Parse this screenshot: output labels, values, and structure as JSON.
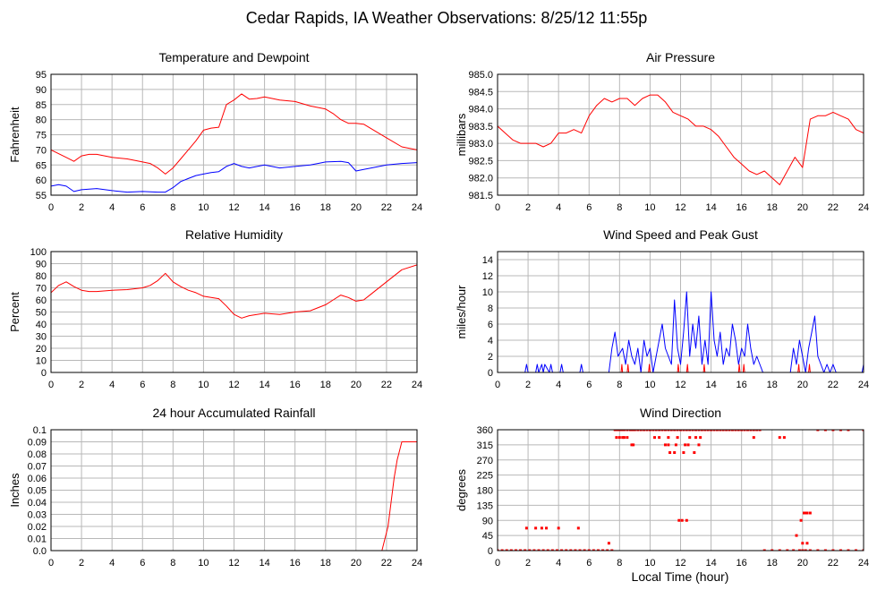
{
  "title": "Cedar Rapids, IA Weather Observations: 8/25/12 11:55p",
  "xlabel": "Local Time (hour)",
  "colors": {
    "primary": "#ff0000",
    "secondary": "#0000ff",
    "grid": "#b8b8b8",
    "frame": "#000000"
  },
  "chart_data": [
    {
      "id": "temp",
      "type": "line",
      "title": "Temperature and Dewpoint",
      "ylabel": "Fahrenheit",
      "xlim": [
        0,
        24
      ],
      "ylim": [
        55,
        95
      ],
      "xticks": [
        "0",
        "2",
        "4",
        "6",
        "8",
        "10",
        "12",
        "14",
        "16",
        "18",
        "20",
        "22",
        "24"
      ],
      "yticks": [
        "55",
        "60",
        "65",
        "70",
        "75",
        "80",
        "85",
        "90",
        "95"
      ],
      "series": [
        {
          "color": "#ff0000",
          "x": [
            0,
            1,
            1.5,
            2,
            2.5,
            3,
            4,
            5,
            6,
            6.5,
            7,
            7.5,
            8,
            8.5,
            9,
            9.5,
            10,
            10.5,
            11,
            11.5,
            12,
            12.5,
            13,
            13.5,
            14,
            14.5,
            15,
            16,
            17,
            18,
            18.5,
            19,
            19.5,
            20,
            20.5,
            21,
            22,
            23,
            24
          ],
          "y": [
            70,
            67.5,
            66.2,
            68,
            68.5,
            68.5,
            67.5,
            67,
            66,
            65.5,
            64,
            62,
            64,
            67,
            70,
            73,
            76.5,
            77.2,
            77.5,
            85,
            86.5,
            88.5,
            86.8,
            87,
            87.5,
            87,
            86.5,
            86,
            84.5,
            83.5,
            82,
            80,
            78.8,
            78.8,
            78.5,
            77,
            74,
            71,
            70
          ]
        },
        {
          "color": "#0000ff",
          "x": [
            0,
            0.5,
            1,
            1.5,
            2,
            3,
            4,
            5,
            6,
            7,
            7.5,
            8,
            8.5,
            9,
            9.5,
            10,
            10.5,
            11,
            11.5,
            12,
            12.5,
            13,
            14,
            15,
            16,
            17,
            17.5,
            18,
            19,
            19.5,
            20,
            20.5,
            21,
            22,
            23,
            24
          ],
          "y": [
            58,
            58.5,
            58,
            56.2,
            56.8,
            57.2,
            56.5,
            56,
            56.2,
            56,
            56,
            57.5,
            59.5,
            60.5,
            61.5,
            62,
            62.5,
            62.8,
            64.5,
            65.5,
            64.5,
            64,
            65,
            64,
            64.5,
            65,
            65.5,
            66,
            66.2,
            65.8,
            63,
            63.5,
            64,
            65,
            65.5,
            65.8
          ]
        }
      ]
    },
    {
      "id": "pres",
      "type": "line",
      "title": "Air Pressure",
      "ylabel": "millibars",
      "xlim": [
        0,
        24
      ],
      "ylim": [
        981.5,
        985
      ],
      "xticks": [
        "0",
        "2",
        "4",
        "6",
        "8",
        "10",
        "12",
        "14",
        "16",
        "18",
        "20",
        "22",
        "24"
      ],
      "yticks": [
        "981.5",
        "982.0",
        "982.5",
        "983.0",
        "983.5",
        "984.0",
        "984.5",
        "985.0"
      ],
      "series": [
        {
          "color": "#ff0000",
          "x": [
            0,
            0.5,
            1,
            1.5,
            2,
            2.5,
            3,
            3.5,
            4,
            4.5,
            5,
            5.5,
            6,
            6.5,
            7,
            7.5,
            8,
            8.5,
            9,
            9.5,
            10,
            10.5,
            11,
            11.5,
            12,
            12.5,
            13,
            13.5,
            14,
            14.5,
            15,
            15.5,
            16,
            16.5,
            17,
            17.5,
            18,
            18.5,
            19,
            19.5,
            20,
            20.5,
            21,
            21.5,
            22,
            22.5,
            23,
            23.5,
            24
          ],
          "y": [
            983.5,
            983.3,
            983.1,
            983.0,
            983.0,
            983.0,
            982.9,
            983.0,
            983.3,
            983.3,
            983.4,
            983.3,
            983.8,
            984.1,
            984.3,
            984.2,
            984.3,
            984.3,
            984.1,
            984.3,
            984.4,
            984.4,
            984.2,
            983.9,
            983.8,
            983.7,
            983.5,
            983.5,
            983.4,
            983.2,
            982.9,
            982.6,
            982.4,
            982.2,
            982.1,
            982.2,
            982.0,
            981.8,
            982.2,
            982.6,
            982.3,
            983.7,
            983.8,
            983.8,
            983.9,
            983.8,
            983.7,
            983.4,
            983.3
          ]
        }
      ]
    },
    {
      "id": "rh",
      "type": "line",
      "title": "Relative Humidity",
      "ylabel": "Percent",
      "xlim": [
        0,
        24
      ],
      "ylim": [
        0,
        100
      ],
      "xticks": [
        "0",
        "2",
        "4",
        "6",
        "8",
        "10",
        "12",
        "14",
        "16",
        "18",
        "20",
        "22",
        "24"
      ],
      "yticks": [
        "0",
        "10",
        "20",
        "30",
        "40",
        "50",
        "60",
        "70",
        "80",
        "90",
        "100"
      ],
      "series": [
        {
          "color": "#ff0000",
          "x": [
            0,
            0.5,
            1,
            1.5,
            2,
            2.5,
            3,
            4,
            5,
            6,
            6.5,
            7,
            7.5,
            8,
            8.5,
            9,
            9.5,
            10,
            10.5,
            11,
            11.5,
            12,
            12.5,
            13,
            13.5,
            14,
            15,
            16,
            17,
            18,
            18.5,
            19,
            19.5,
            20,
            20.5,
            21,
            22,
            23,
            24
          ],
          "y": [
            66,
            72,
            75,
            71,
            68,
            67,
            67,
            68,
            68.5,
            70,
            72,
            76,
            82,
            75,
            71,
            68,
            66,
            63,
            62,
            61,
            55,
            48,
            45,
            47,
            48,
            49,
            48,
            50,
            51,
            56,
            60,
            64,
            62,
            59,
            60,
            65,
            75,
            85,
            89
          ]
        }
      ]
    },
    {
      "id": "wind",
      "type": "line",
      "title": "Wind Speed and Peak Gust",
      "ylabel": "miles/hour",
      "xlim": [
        0,
        24
      ],
      "ylim": [
        0,
        15
      ],
      "xticks": [
        "0",
        "2",
        "4",
        "6",
        "8",
        "10",
        "12",
        "14",
        "16",
        "18",
        "20",
        "22",
        "24"
      ],
      "yticks": [
        "0",
        "2",
        "4",
        "6",
        "8",
        "10",
        "12",
        "14"
      ],
      "series": [
        {
          "color": "#0000ff",
          "x": [
            0,
            1.8,
            1.9,
            2.0,
            2.1,
            2.5,
            2.6,
            2.7,
            2.9,
            3.0,
            3.1,
            3.4,
            3.5,
            3.6,
            4.1,
            4.2,
            4.3,
            5.4,
            5.5,
            5.6,
            7.3,
            7.5,
            7.7,
            7.9,
            8.2,
            8.4,
            8.6,
            8.8,
            9.0,
            9.2,
            9.4,
            9.6,
            9.8,
            10.0,
            10.2,
            10.4,
            10.6,
            10.8,
            11.0,
            11.2,
            11.4,
            11.6,
            11.8,
            12.0,
            12.2,
            12.4,
            12.6,
            12.8,
            13.0,
            13.2,
            13.4,
            13.6,
            13.8,
            14.0,
            14.2,
            14.4,
            14.6,
            14.8,
            15.0,
            15.2,
            15.4,
            15.6,
            15.8,
            16.0,
            16.2,
            16.4,
            16.6,
            16.8,
            17.0,
            17.2,
            17.4,
            17.6,
            19.2,
            19.4,
            19.6,
            19.8,
            20.0,
            20.2,
            20.4,
            20.6,
            20.8,
            21.0,
            21.2,
            21.4,
            21.6,
            21.8,
            22.0,
            22.2,
            22.4,
            23.9,
            24
          ],
          "y": [
            0,
            0,
            1,
            0,
            0,
            0,
            1,
            0,
            1,
            0,
            1,
            0,
            1,
            0,
            0,
            1,
            0,
            0,
            1,
            0,
            0,
            3,
            5,
            2,
            3,
            1,
            4,
            2,
            1,
            3,
            0,
            4,
            2,
            3,
            0,
            2,
            4,
            6,
            3,
            2,
            1,
            9,
            3,
            1,
            5,
            10,
            2,
            6,
            3,
            7,
            1,
            4,
            1,
            10,
            4,
            2,
            5,
            1,
            3,
            2,
            6,
            4,
            1,
            3,
            2,
            6,
            3,
            1,
            2,
            1,
            0,
            0,
            0,
            3,
            1,
            4,
            2,
            0,
            3,
            5,
            7,
            2,
            1,
            0,
            1,
            0,
            1,
            0,
            0,
            0,
            1
          ]
        },
        {
          "color": "#ff0000",
          "x": [
            0,
            8.1,
            8.15,
            8.2,
            8.3,
            8.5,
            8.55,
            8.6,
            9.9,
            9.95,
            10,
            11.8,
            11.85,
            11.9,
            12.4,
            12.45,
            12.5,
            13.5,
            13.55,
            13.6,
            15.8,
            15.85,
            15.9,
            16.1,
            16.15,
            16.2,
            19.7,
            19.75,
            19.8,
            20.4,
            20.45,
            20.5,
            24
          ],
          "y": [
            0,
            0,
            1,
            0,
            0,
            0,
            1,
            0,
            0,
            1,
            0,
            0,
            1,
            0,
            0,
            1,
            0,
            0,
            1,
            0,
            0,
            1,
            0,
            0,
            1,
            0,
            0,
            1,
            0,
            0,
            1,
            0,
            0
          ]
        }
      ]
    },
    {
      "id": "rain",
      "type": "line",
      "title": "24 hour Accumulated Rainfall",
      "ylabel": "Inches",
      "xlim": [
        0,
        24
      ],
      "ylim": [
        0,
        0.1
      ],
      "xticks": [
        "0",
        "2",
        "4",
        "6",
        "8",
        "10",
        "12",
        "14",
        "16",
        "18",
        "20",
        "22",
        "24"
      ],
      "yticks": [
        "0.0",
        "0.01",
        "0.02",
        "0.03",
        "0.04",
        "0.05",
        "0.06",
        "0.07",
        "0.08",
        "0.09",
        "0.1"
      ],
      "series": [
        {
          "color": "#ff0000",
          "x": [
            0,
            21.7,
            21.9,
            22.1,
            22.3,
            22.5,
            22.7,
            22.9,
            23.0,
            24
          ],
          "y": [
            0,
            0,
            0.01,
            0.02,
            0.04,
            0.06,
            0.075,
            0.085,
            0.09,
            0.09
          ]
        }
      ]
    },
    {
      "id": "dir",
      "type": "scatter",
      "title": "Wind Direction",
      "ylabel": "degrees",
      "xlim": [
        0,
        24
      ],
      "ylim": [
        0,
        360
      ],
      "xticks": [
        "0",
        "2",
        "4",
        "6",
        "8",
        "10",
        "12",
        "14",
        "16",
        "18",
        "20",
        "22",
        "24"
      ],
      "yticks": [
        "0",
        "45",
        "90",
        "135",
        "180",
        "225",
        "270",
        "315",
        "360"
      ],
      "series": [
        {
          "color": "#ff0000",
          "x": [
            0,
            0.3,
            0.6,
            0.9,
            1.2,
            1.5,
            1.8,
            2.1,
            2.4,
            2.7,
            3.0,
            3.3,
            3.6,
            3.9,
            4.2,
            4.5,
            4.8,
            5.1,
            5.4,
            5.7,
            6.0,
            6.3,
            6.6,
            6.9,
            7.2,
            7.5,
            1.9,
            2.5,
            2.9,
            3.2,
            4.0,
            5.3,
            7.3,
            7.7,
            7.8,
            7.9,
            8.0,
            8.1,
            8.2,
            8.3,
            8.5,
            8.7,
            8.8,
            8.9,
            9.0,
            9.2,
            9.4,
            9.6,
            9.8,
            10.0,
            10.2,
            10.4,
            10.6,
            10.8,
            11.0,
            11.2,
            11.4,
            11.6,
            11.8,
            12.0,
            12.2,
            12.4,
            12.6,
            12.8,
            13.0,
            13.2,
            13.4,
            13.6,
            13.8,
            14.0,
            14.2,
            14.4,
            14.6,
            14.8,
            15.0,
            15.2,
            15.4,
            15.6,
            15.8,
            16.0,
            16.2,
            16.4,
            16.6,
            16.8,
            17.0,
            17.2,
            7.8,
            8.0,
            8.2,
            8.3,
            8.5,
            10.3,
            10.6,
            11.2,
            11.8,
            12.6,
            13.0,
            13.3,
            8.8,
            8.9,
            11.0,
            11.2,
            11.7,
            12.3,
            12.5,
            13.2,
            11.9,
            12.1,
            12.4,
            11.3,
            11.6,
            12.2,
            12.9,
            16.8,
            17.5,
            18.0,
            18.5,
            19.0,
            19.4,
            19.8,
            20.0,
            20.2,
            20.5,
            21.0,
            21.5,
            22.0,
            22.5,
            23.0,
            23.5,
            24,
            18.5,
            18.8,
            19.6,
            19.9,
            20.1,
            20.2,
            20.3,
            20.5,
            20.0,
            20.3,
            21.0,
            21.5,
            22.0,
            22.5,
            23.0,
            24
          ],
          "y": [
            0,
            0,
            0,
            0,
            0,
            0,
            0,
            0,
            0,
            0,
            0,
            0,
            0,
            0,
            0,
            0,
            0,
            0,
            0,
            0,
            0,
            0,
            0,
            0,
            0,
            0,
            67,
            67,
            67,
            67,
            67,
            67,
            22,
            360,
            360,
            360,
            360,
            360,
            360,
            360,
            360,
            360,
            360,
            360,
            360,
            360,
            360,
            360,
            360,
            360,
            360,
            360,
            360,
            360,
            360,
            360,
            360,
            360,
            360,
            360,
            360,
            360,
            360,
            360,
            360,
            360,
            360,
            360,
            360,
            360,
            360,
            360,
            360,
            360,
            360,
            360,
            360,
            360,
            360,
            360,
            360,
            360,
            360,
            360,
            360,
            360,
            337,
            337,
            337,
            337,
            337,
            337,
            337,
            337,
            337,
            337,
            337,
            337,
            315,
            315,
            315,
            315,
            315,
            315,
            315,
            315,
            90,
            90,
            90,
            292,
            292,
            292,
            292,
            337,
            0,
            0,
            0,
            0,
            0,
            0,
            0,
            0,
            0,
            0,
            0,
            0,
            0,
            0,
            0,
            0,
            337,
            337,
            45,
            90,
            112,
            112,
            112,
            112,
            22,
            22,
            360,
            360,
            360,
            360,
            360,
            360
          ]
        }
      ]
    }
  ]
}
